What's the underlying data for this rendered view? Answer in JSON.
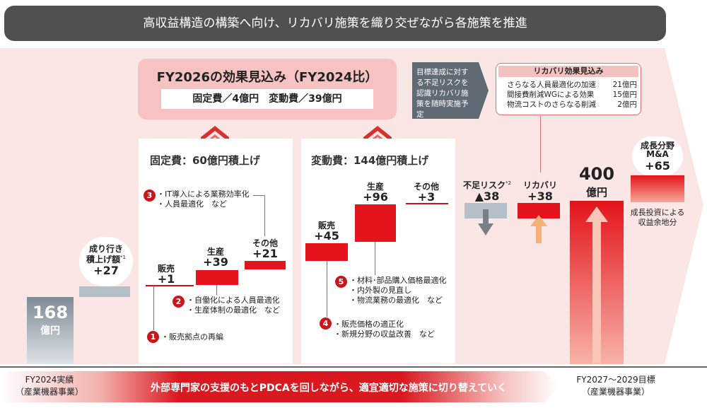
{
  "headline": "高収益構造の構築へ向け、リカバリ施策を織り交ぜながら各施策を推進",
  "effect_box": {
    "title": "FY2026の効果見込み（FY2024比）",
    "detail": "固定費／4億円　変動費／39億円"
  },
  "fixed_panel": {
    "title": "固定費：60億円積上げ"
  },
  "variable_panel": {
    "title": "変動費：144億円積上げ"
  },
  "risk_note": "目標達成に対する不足リスクを認識リカバリ施策を随時実施予定",
  "recovery_box": {
    "title": "リカバリ効果見込み",
    "items": [
      {
        "label": "さらなる人員最適化の加速",
        "value": "21億円"
      },
      {
        "label": "間接費削減WGによる効果",
        "value": "15億円"
      },
      {
        "label": "物流コストのさらなる削減",
        "value": "2億円"
      }
    ]
  },
  "measures": {
    "m1": {
      "num": "1",
      "lines": [
        "・販売拠点の再編"
      ]
    },
    "m2": {
      "num": "2",
      "lines": [
        "・自働化による人員最適化",
        "・生産体制の最適化　など"
      ]
    },
    "m3": {
      "num": "3",
      "lines": [
        "・IT導入による業務効率化",
        "・人員最適化　など"
      ]
    },
    "m4": {
      "num": "4",
      "lines": [
        "・販売価格の適正化",
        "・新規分野の収益改善　など"
      ]
    },
    "m5": {
      "num": "5",
      "lines": [
        "・材料･部品購入価格最適化",
        "・内外製の見直し",
        "・物流業務の最適化　など"
      ]
    }
  },
  "labels": {
    "base_value": "168",
    "base_unit": "億円",
    "natural_l1": "成り行き",
    "natural_l2": "積上げ額",
    "natural_mark": "*1",
    "natural_val": "+27",
    "fx_sales": "販売",
    "fx_sales_val": "+1",
    "fx_prod": "生産",
    "fx_prod_val": "+39",
    "fx_other": "その他",
    "fx_other_val": "+21",
    "vr_sales": "販売",
    "vr_sales_val": "+45",
    "vr_prod": "生産",
    "vr_prod_val": "+96",
    "vr_other": "その他",
    "vr_other_val": "+3",
    "risk": "不足リスク",
    "risk_mark": "*2",
    "risk_val": "▲38",
    "recovery": "リカバリ",
    "recovery_val": "+38",
    "target_value": "400",
    "target_unit": "億円",
    "growth_l1": "成長分野",
    "growth_l2": "M&A",
    "growth_val": "+65",
    "growth_note_l1": "成長投資による",
    "growth_note_l2": "収益余地分"
  },
  "footer": {
    "left_l1": "FY2024実績",
    "left_l2": "（産業機器事業）",
    "banner": "外部専門家の支援のもとPDCAを回しながら、適宜適切な施策に切り替えていく",
    "right_l1": "FY2027～2029目標",
    "right_l2": "（産業機器事業）"
  },
  "colors": {
    "accent_red": "#c9161d",
    "pink_bg": "#fbe3e3",
    "gray_bar": "#b5bfc7",
    "dark_banner": "#505050"
  },
  "chart_data": {
    "type": "bar",
    "subtype": "waterfall",
    "unit": "億円",
    "categories": [
      "FY2024実績",
      "成り行き積上げ額",
      "固定費 販売",
      "固定費 生産",
      "固定費 その他",
      "変動費 販売",
      "変動費 生産",
      "変動費 その他",
      "不足リスク",
      "リカバリ",
      "FY2027～2029目標",
      "成長分野 M&A"
    ],
    "values": [
      168,
      27,
      1,
      39,
      21,
      45,
      96,
      3,
      -38,
      38,
      400,
      65
    ]
  }
}
